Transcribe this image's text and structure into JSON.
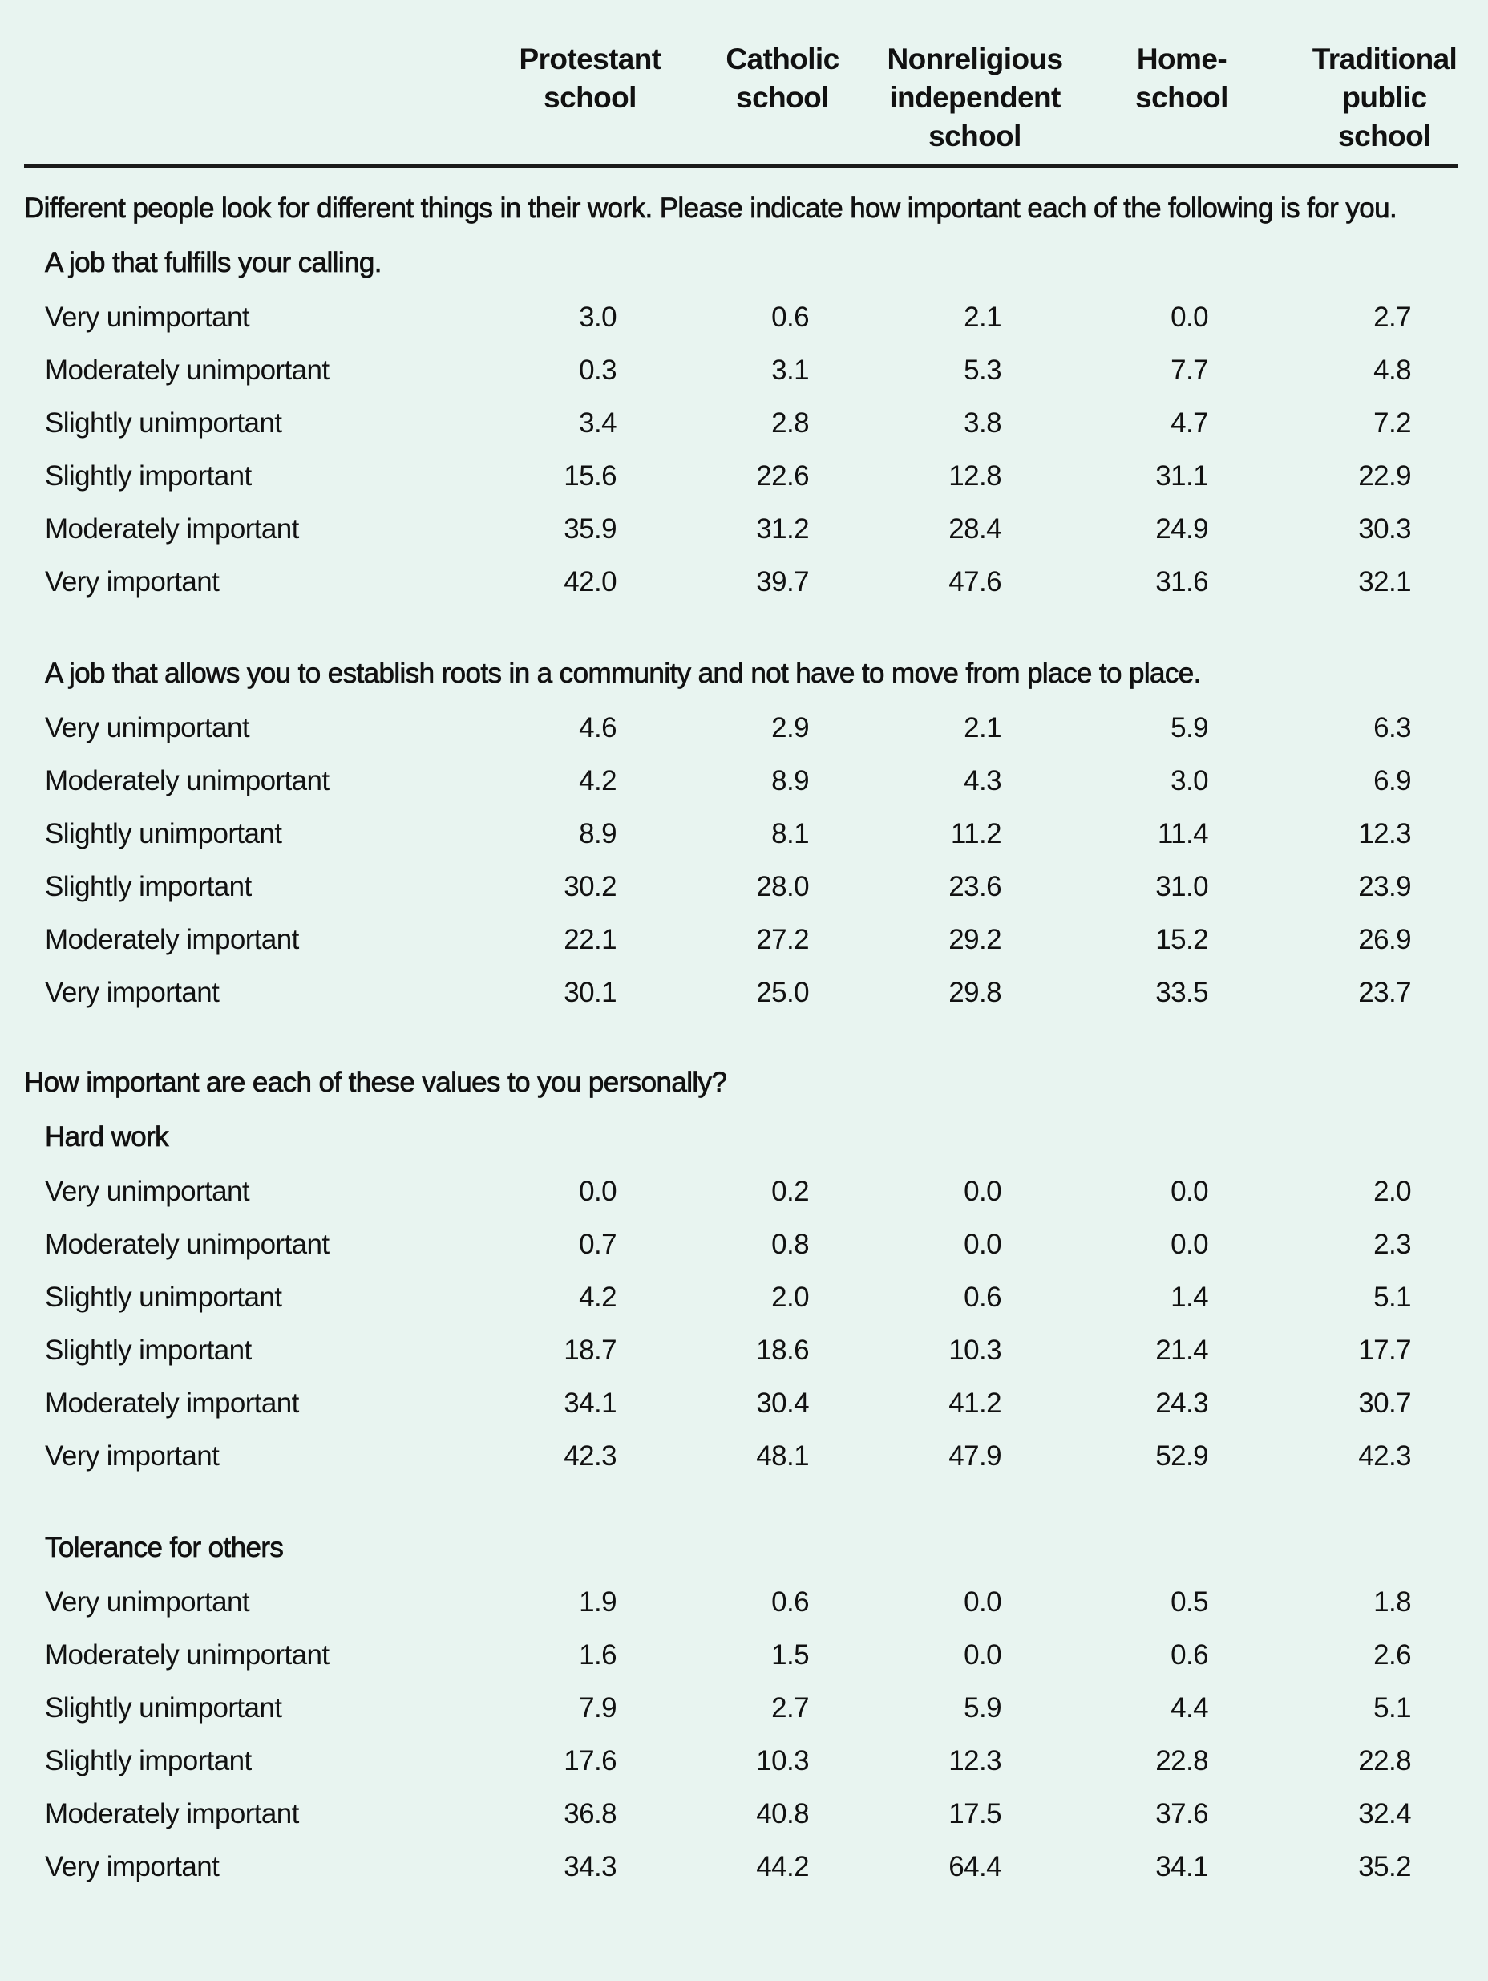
{
  "colors": {
    "background": "#e8f4f0",
    "text": "#111111",
    "rule": "#1a1a1a"
  },
  "table": {
    "columns": [
      "Protestant\nschool",
      "Catholic\nschool",
      "Nonreligious\nindependent\nschool",
      "Home-\nschool",
      "Traditional\npublic\nschool"
    ],
    "blocks": [
      {
        "intro": "Different people look for different things in their work. Please indicate how important each of the following is for you.",
        "items": [
          {
            "label": "A job that fulfills your calling.",
            "rows": [
              {
                "label": "Very unimportant",
                "values": [
                  "3.0",
                  "0.6",
                  "2.1",
                  "0.0",
                  "2.7"
                ]
              },
              {
                "label": "Moderately unimportant",
                "values": [
                  "0.3",
                  "3.1",
                  "5.3",
                  "7.7",
                  "4.8"
                ]
              },
              {
                "label": "Slightly unimportant",
                "values": [
                  "3.4",
                  "2.8",
                  "3.8",
                  "4.7",
                  "7.2"
                ]
              },
              {
                "label": "Slightly important",
                "values": [
                  "15.6",
                  "22.6",
                  "12.8",
                  "31.1",
                  "22.9"
                ]
              },
              {
                "label": "Moderately important",
                "values": [
                  "35.9",
                  "31.2",
                  "28.4",
                  "24.9",
                  "30.3"
                ]
              },
              {
                "label": "Very important",
                "values": [
                  "42.0",
                  "39.7",
                  "47.6",
                  "31.6",
                  "32.1"
                ]
              }
            ]
          },
          {
            "label": "A job that allows you to establish roots in a community and not have to move from place to place.",
            "rows": [
              {
                "label": "Very unimportant",
                "values": [
                  "4.6",
                  "2.9",
                  "2.1",
                  "5.9",
                  "6.3"
                ]
              },
              {
                "label": "Moderately unimportant",
                "values": [
                  "4.2",
                  "8.9",
                  "4.3",
                  "3.0",
                  "6.9"
                ]
              },
              {
                "label": "Slightly unimportant",
                "values": [
                  "8.9",
                  "8.1",
                  "11.2",
                  "11.4",
                  "12.3"
                ]
              },
              {
                "label": "Slightly important",
                "values": [
                  "30.2",
                  "28.0",
                  "23.6",
                  "31.0",
                  "23.9"
                ]
              },
              {
                "label": "Moderately important",
                "values": [
                  "22.1",
                  "27.2",
                  "29.2",
                  "15.2",
                  "26.9"
                ]
              },
              {
                "label": "Very important",
                "values": [
                  "30.1",
                  "25.0",
                  "29.8",
                  "33.5",
                  "23.7"
                ]
              }
            ]
          }
        ]
      },
      {
        "intro": "How important are each of these values to you personally?",
        "items": [
          {
            "label": "Hard work",
            "rows": [
              {
                "label": "Very unimportant",
                "values": [
                  "0.0",
                  "0.2",
                  "0.0",
                  "0.0",
                  "2.0"
                ]
              },
              {
                "label": "Moderately unimportant",
                "values": [
                  "0.7",
                  "0.8",
                  "0.0",
                  "0.0",
                  "2.3"
                ]
              },
              {
                "label": "Slightly unimportant",
                "values": [
                  "4.2",
                  "2.0",
                  "0.6",
                  "1.4",
                  "5.1"
                ]
              },
              {
                "label": "Slightly important",
                "values": [
                  "18.7",
                  "18.6",
                  "10.3",
                  "21.4",
                  "17.7"
                ]
              },
              {
                "label": "Moderately important",
                "values": [
                  "34.1",
                  "30.4",
                  "41.2",
                  "24.3",
                  "30.7"
                ]
              },
              {
                "label": "Very important",
                "values": [
                  "42.3",
                  "48.1",
                  "47.9",
                  "52.9",
                  "42.3"
                ]
              }
            ]
          },
          {
            "label": "Tolerance for others",
            "rows": [
              {
                "label": "Very unimportant",
                "values": [
                  "1.9",
                  "0.6",
                  "0.0",
                  "0.5",
                  "1.8"
                ]
              },
              {
                "label": "Moderately unimportant",
                "values": [
                  "1.6",
                  "1.5",
                  "0.0",
                  "0.6",
                  "2.6"
                ]
              },
              {
                "label": "Slightly unimportant",
                "values": [
                  "7.9",
                  "2.7",
                  "5.9",
                  "4.4",
                  "5.1"
                ]
              },
              {
                "label": "Slightly important",
                "values": [
                  "17.6",
                  "10.3",
                  "12.3",
                  "22.8",
                  "22.8"
                ]
              },
              {
                "label": "Moderately important",
                "values": [
                  "36.8",
                  "40.8",
                  "17.5",
                  "37.6",
                  "32.4"
                ]
              },
              {
                "label": "Very important",
                "values": [
                  "34.3",
                  "44.2",
                  "64.4",
                  "34.1",
                  "35.2"
                ]
              }
            ]
          }
        ]
      }
    ]
  }
}
